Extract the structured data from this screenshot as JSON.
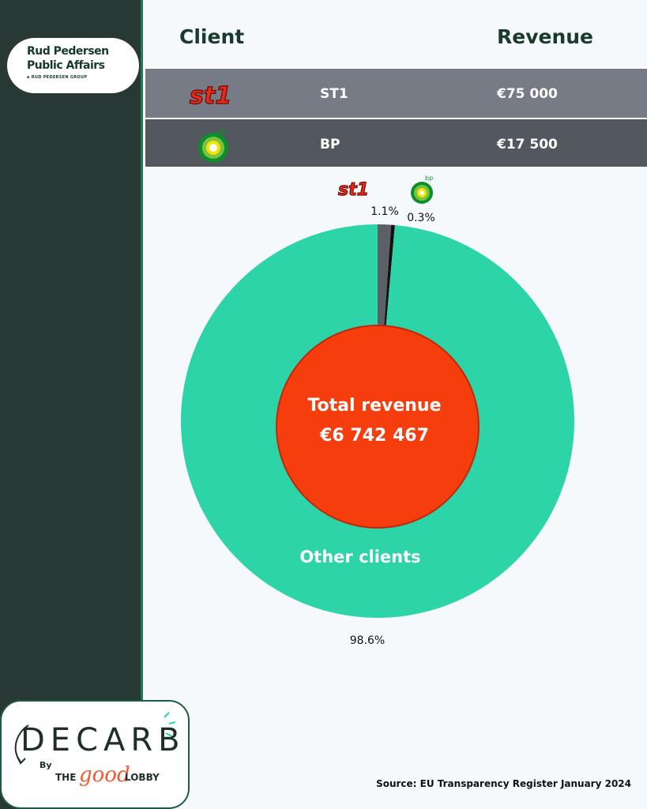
{
  "agency": {
    "line1": "Rud Pedersen",
    "line2": "Public Affairs",
    "line3": "a RUD PEDERSEN GROUP"
  },
  "table": {
    "header_client": "Client",
    "header_revenue": "Revenue",
    "rows": [
      {
        "client": "ST1",
        "revenue": "€75 000",
        "logo": "st1-logo"
      },
      {
        "client": "BP",
        "revenue": "€17 500",
        "logo": "bp-logo"
      }
    ]
  },
  "chart_data": {
    "type": "pie",
    "center_label_line1": "Total revenue",
    "center_label_line2": "€6 742 467",
    "slices": [
      {
        "label": "Other clients",
        "value": 98.6,
        "display": "98.6%",
        "color": "#2dd4a8"
      },
      {
        "label": "ST1",
        "value": 1.1,
        "display": "1.1%",
        "color": "#5b5f66"
      },
      {
        "label": "BP",
        "value": 0.3,
        "display": "0.3%",
        "color": "#111111"
      }
    ],
    "other_label": "Other clients",
    "center_color": "#f53d0e",
    "labels": {
      "st1_pct": "1.1%",
      "bp_pct": "0.3%",
      "other_pct": "98.6%"
    }
  },
  "footer": {
    "decarb": "DECARB",
    "by": "By",
    "the": "THE",
    "good": "good",
    "lobby": "LOBBY",
    "source": "Source: EU Transparency Register January 2024"
  },
  "colors": {
    "sidebar": "#283834",
    "row1": "#777b86",
    "row2": "#53575e",
    "accent": "#2dd4a8"
  }
}
